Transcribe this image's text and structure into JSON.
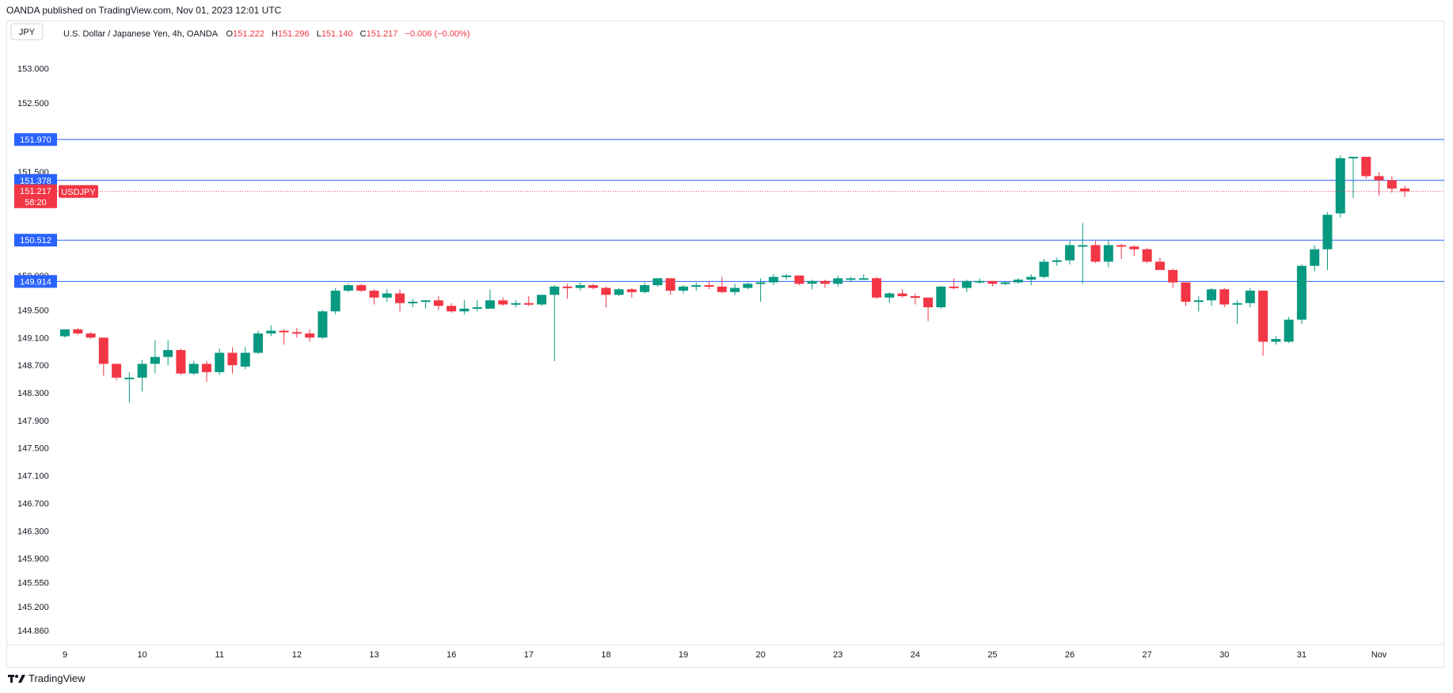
{
  "header": {
    "publisher_text": "OANDA published on TradingView.com, Nov 01, 2023 12:01 UTC",
    "currency_button": "JPY",
    "instrument": "U.S. Dollar / Japanese Yen, 4h, OANDA",
    "ohlc": {
      "open_label": "O",
      "open": "151.222",
      "high_label": "H",
      "high": "151.296",
      "low_label": "L",
      "low": "151.140",
      "close_label": "C",
      "close": "151.217",
      "change": "−0.006 (−0.00%)"
    }
  },
  "footer": {
    "brand": "TradingView"
  },
  "colors": {
    "up": "#089981",
    "down": "#f23645",
    "level_line": "#2962ff",
    "price_label_bg": "#f23645",
    "axis_text": "#131722"
  },
  "chart_data": {
    "type": "candlestick",
    "symbol": "USDJPY",
    "timeframe": "4h",
    "y_ticks": [
      153.0,
      152.5,
      151.5,
      150.0,
      149.5,
      149.1,
      148.7,
      148.3,
      147.9,
      147.5,
      147.1,
      146.7,
      146.3,
      145.9,
      145.55,
      145.2,
      144.86
    ],
    "y_tick_labels": [
      "153.000",
      "152.500",
      "151.500",
      "150.000",
      "149.500",
      "149.100",
      "148.700",
      "148.300",
      "147.900",
      "147.500",
      "147.100",
      "146.700",
      "146.300",
      "145.900",
      "145.550",
      "145.200",
      "144.860"
    ],
    "x_labels": [
      {
        "label": "9",
        "index": 0
      },
      {
        "label": "10",
        "index": 6
      },
      {
        "label": "11",
        "index": 12
      },
      {
        "label": "12",
        "index": 18
      },
      {
        "label": "13",
        "index": 24
      },
      {
        "label": "16",
        "index": 30
      },
      {
        "label": "17",
        "index": 36
      },
      {
        "label": "18",
        "index": 42
      },
      {
        "label": "19",
        "index": 48
      },
      {
        "label": "20",
        "index": 54
      },
      {
        "label": "23",
        "index": 60
      },
      {
        "label": "24",
        "index": 66
      },
      {
        "label": "25",
        "index": 72
      },
      {
        "label": "26",
        "index": 78
      },
      {
        "label": "27",
        "index": 84
      },
      {
        "label": "30",
        "index": 90
      },
      {
        "label": "31",
        "index": 96
      },
      {
        "label": "Nov",
        "index": 102
      }
    ],
    "levels": [
      {
        "value": 151.97,
        "label": "151.970"
      },
      {
        "value": 151.378,
        "label": "151.378"
      },
      {
        "value": 150.512,
        "label": "150.512"
      },
      {
        "value": 149.914,
        "label": "149.914"
      }
    ],
    "current_price": {
      "value": 151.217,
      "label": "151.217",
      "symbol_label": "USDJPY",
      "countdown": "58:20"
    },
    "candles": [
      [
        149.12,
        149.22,
        149.1,
        149.22
      ],
      [
        149.22,
        149.24,
        149.14,
        149.16
      ],
      [
        149.16,
        149.18,
        149.08,
        149.1
      ],
      [
        149.1,
        149.1,
        148.55,
        148.72
      ],
      [
        148.72,
        148.72,
        148.48,
        148.52
      ],
      [
        148.52,
        148.6,
        148.16,
        148.52
      ],
      [
        148.52,
        148.78,
        148.32,
        148.72
      ],
      [
        148.72,
        149.06,
        148.58,
        148.82
      ],
      [
        148.82,
        149.06,
        148.7,
        148.92
      ],
      [
        148.92,
        148.94,
        148.56,
        148.58
      ],
      [
        148.58,
        148.76,
        148.56,
        148.72
      ],
      [
        148.72,
        148.76,
        148.46,
        148.6
      ],
      [
        148.6,
        148.94,
        148.56,
        148.88
      ],
      [
        148.88,
        148.96,
        148.58,
        148.7
      ],
      [
        148.68,
        148.96,
        148.64,
        148.88
      ],
      [
        148.88,
        149.2,
        148.86,
        149.16
      ],
      [
        149.16,
        149.28,
        149.12,
        149.2
      ],
      [
        149.2,
        149.22,
        149.0,
        149.18
      ],
      [
        149.18,
        149.24,
        149.1,
        149.16
      ],
      [
        149.16,
        149.22,
        149.04,
        149.1
      ],
      [
        149.1,
        149.5,
        149.08,
        149.48
      ],
      [
        149.48,
        149.82,
        149.44,
        149.78
      ],
      [
        149.78,
        149.88,
        149.76,
        149.86
      ],
      [
        149.86,
        149.88,
        149.76,
        149.78
      ],
      [
        149.78,
        149.8,
        149.58,
        149.68
      ],
      [
        149.68,
        149.8,
        149.62,
        149.74
      ],
      [
        149.74,
        149.8,
        149.48,
        149.6
      ],
      [
        149.6,
        149.66,
        149.54,
        149.62
      ],
      [
        149.62,
        149.64,
        149.52,
        149.64
      ],
      [
        149.64,
        149.7,
        149.5,
        149.56
      ],
      [
        149.56,
        149.6,
        149.46,
        149.48
      ],
      [
        149.48,
        149.64,
        149.44,
        149.52
      ],
      [
        149.52,
        149.64,
        149.48,
        149.54
      ],
      [
        149.52,
        149.8,
        149.52,
        149.64
      ],
      [
        149.64,
        149.68,
        149.56,
        149.58
      ],
      [
        149.58,
        149.64,
        149.54,
        149.6
      ],
      [
        149.6,
        149.7,
        149.56,
        149.58
      ],
      [
        149.58,
        149.72,
        149.56,
        149.72
      ],
      [
        149.72,
        149.86,
        148.76,
        149.84
      ],
      [
        149.84,
        149.88,
        149.66,
        149.82
      ],
      [
        149.82,
        149.9,
        149.78,
        149.86
      ],
      [
        149.86,
        149.88,
        149.8,
        149.82
      ],
      [
        149.82,
        149.84,
        149.54,
        149.72
      ],
      [
        149.72,
        149.82,
        149.7,
        149.8
      ],
      [
        149.8,
        149.82,
        149.68,
        149.76
      ],
      [
        149.76,
        149.9,
        149.74,
        149.86
      ],
      [
        149.86,
        149.96,
        149.84,
        149.96
      ],
      [
        149.96,
        149.96,
        149.72,
        149.78
      ],
      [
        149.78,
        149.86,
        149.74,
        149.84
      ],
      [
        149.84,
        149.9,
        149.78,
        149.86
      ],
      [
        149.86,
        149.92,
        149.8,
        149.84
      ],
      [
        149.84,
        149.98,
        149.74,
        149.76
      ],
      [
        149.76,
        149.88,
        149.72,
        149.82
      ],
      [
        149.82,
        149.9,
        149.8,
        149.88
      ],
      [
        149.88,
        149.96,
        149.62,
        149.9
      ],
      [
        149.9,
        150.02,
        149.86,
        149.98
      ],
      [
        149.98,
        150.02,
        149.94,
        150.0
      ],
      [
        150.0,
        150.0,
        149.86,
        149.88
      ],
      [
        149.88,
        149.94,
        149.8,
        149.92
      ],
      [
        149.92,
        149.94,
        149.82,
        149.88
      ],
      [
        149.88,
        150.0,
        149.84,
        149.96
      ],
      [
        149.96,
        149.98,
        149.9,
        149.96
      ],
      [
        149.96,
        150.02,
        149.94,
        149.96
      ],
      [
        149.96,
        149.98,
        149.66,
        149.68
      ],
      [
        149.68,
        149.76,
        149.6,
        149.74
      ],
      [
        149.74,
        149.8,
        149.68,
        149.7
      ],
      [
        149.7,
        149.74,
        149.58,
        149.68
      ],
      [
        149.68,
        149.68,
        149.34,
        149.54
      ],
      [
        149.54,
        149.84,
        149.52,
        149.84
      ],
      [
        149.84,
        149.96,
        149.8,
        149.82
      ],
      [
        149.82,
        149.94,
        149.76,
        149.92
      ],
      [
        149.92,
        149.96,
        149.88,
        149.92
      ],
      [
        149.92,
        149.92,
        149.84,
        149.88
      ],
      [
        149.88,
        149.92,
        149.86,
        149.9
      ],
      [
        149.9,
        149.96,
        149.88,
        149.94
      ],
      [
        149.94,
        150.02,
        149.86,
        149.98
      ],
      [
        149.98,
        150.24,
        149.96,
        150.2
      ],
      [
        150.2,
        150.26,
        150.14,
        150.22
      ],
      [
        150.22,
        150.5,
        150.16,
        150.44
      ],
      [
        150.44,
        150.76,
        149.88,
        150.44
      ],
      [
        150.44,
        150.5,
        150.18,
        150.2
      ],
      [
        150.2,
        150.52,
        150.12,
        150.44
      ],
      [
        150.44,
        150.46,
        150.24,
        150.42
      ],
      [
        150.42,
        150.44,
        150.28,
        150.38
      ],
      [
        150.38,
        150.4,
        150.18,
        150.2
      ],
      [
        150.2,
        150.26,
        150.08,
        150.08
      ],
      [
        150.08,
        150.1,
        149.82,
        149.9
      ],
      [
        149.9,
        149.9,
        149.56,
        149.62
      ],
      [
        149.62,
        149.7,
        149.48,
        149.64
      ],
      [
        149.64,
        149.82,
        149.56,
        149.8
      ],
      [
        149.8,
        149.82,
        149.54,
        149.58
      ],
      [
        149.58,
        149.64,
        149.3,
        149.6
      ],
      [
        149.6,
        149.82,
        149.54,
        149.78
      ],
      [
        149.78,
        149.78,
        148.84,
        149.04
      ],
      [
        149.04,
        149.12,
        149.0,
        149.08
      ],
      [
        149.04,
        149.4,
        149.02,
        149.36
      ],
      [
        149.36,
        150.16,
        149.3,
        150.14
      ],
      [
        150.14,
        150.44,
        150.06,
        150.38
      ],
      [
        150.38,
        150.92,
        150.08,
        150.88
      ],
      [
        150.9,
        151.74,
        150.84,
        151.7
      ],
      [
        151.7,
        151.72,
        151.12,
        151.72
      ],
      [
        151.72,
        151.72,
        151.4,
        151.44
      ],
      [
        151.44,
        151.5,
        151.16,
        151.38
      ],
      [
        151.38,
        151.44,
        151.2,
        151.26
      ],
      [
        151.26,
        151.3,
        151.14,
        151.22
      ]
    ]
  }
}
